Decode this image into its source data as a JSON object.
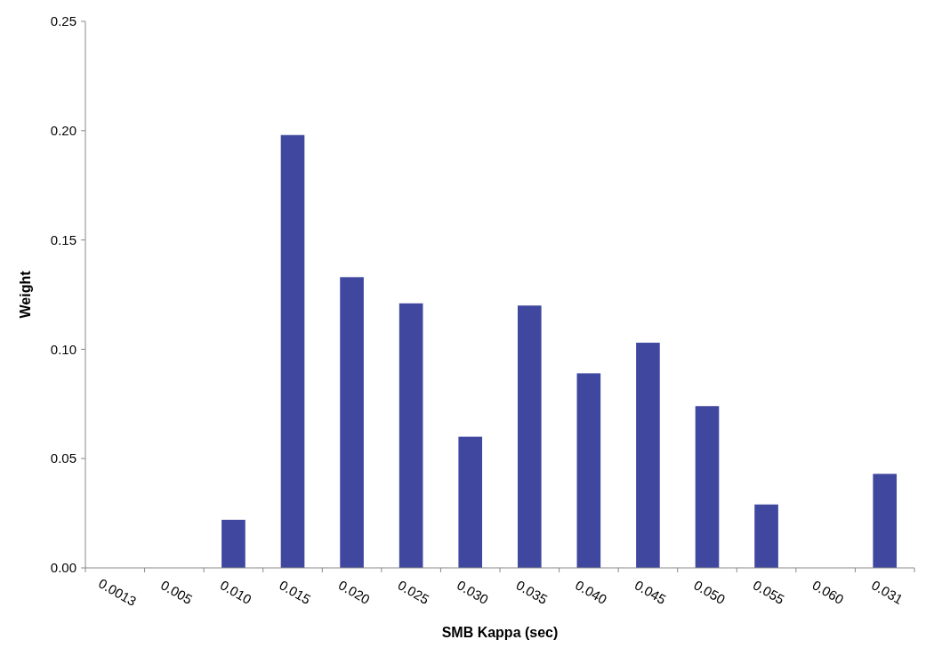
{
  "chart_data": {
    "type": "bar",
    "xlabel": "SMB Kappa (sec)",
    "ylabel": "Weight",
    "categories": [
      "0.0013",
      "0.005",
      "0.010",
      "0.015",
      "0.020",
      "0.025",
      "0.030",
      "0.035",
      "0.040",
      "0.045",
      "0.050",
      "0.055",
      "0.060",
      "0.031"
    ],
    "values": [
      0,
      0,
      0.022,
      0.198,
      0.133,
      0.121,
      0.06,
      0.12,
      0.089,
      0.103,
      0.074,
      0.029,
      0,
      0.043
    ],
    "color": "#3f479e",
    "ylim": [
      0,
      0.25
    ],
    "yticks": [
      {
        "value": 0,
        "label": "0.00"
      },
      {
        "value": 0.05,
        "label": "0.05"
      },
      {
        "value": 0.1,
        "label": "0.10"
      },
      {
        "value": 0.15,
        "label": "0.15"
      },
      {
        "value": 0.2,
        "label": "0.20"
      },
      {
        "value": 0.25,
        "label": "0.25"
      }
    ],
    "grid": false
  }
}
